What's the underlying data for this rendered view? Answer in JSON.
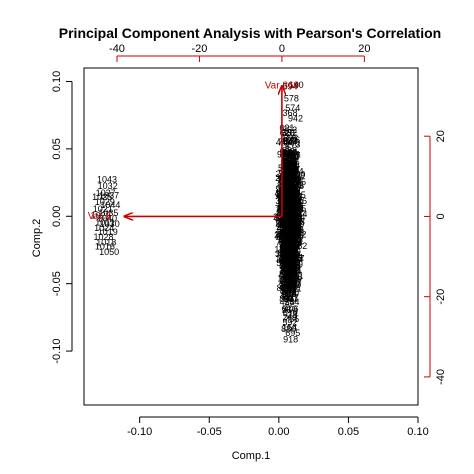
{
  "chart_data": {
    "type": "scatter",
    "title": "Principal Component Analysis with Pearson's Correlation",
    "xlabel": "Comp.1",
    "ylabel": "Comp.2",
    "xlim": [
      -0.14,
      0.1
    ],
    "ylim": [
      -0.14,
      0.11
    ],
    "x_ticks": [
      "-0.10",
      "-0.05",
      "0.00",
      "0.05",
      "0.10"
    ],
    "y_ticks": [
      "-0.10",
      "-0.05",
      "0.00",
      "0.05",
      "0.10"
    ],
    "sec_xlim": [
      -48,
      33
    ],
    "sec_ylim": [
      -47,
      37
    ],
    "sec_x_ticks": [
      "-40",
      "-20",
      "0",
      "20"
    ],
    "sec_y_ticks": [
      "-40",
      "-20",
      "0",
      "20"
    ],
    "arrow_color": "#cc0000",
    "observation_labels": [
      {
        "text": "1043",
        "x": -0.1235,
        "y": 0.027
      },
      {
        "text": "1032",
        "x": -0.123,
        "y": 0.022
      },
      {
        "text": "1027",
        "x": -0.1245,
        "y": 0.017
      },
      {
        "text": "1037",
        "x": -0.122,
        "y": 0.015
      },
      {
        "text": "1025",
        "x": -0.127,
        "y": 0.014
      },
      {
        "text": "1029",
        "x": -0.125,
        "y": 0.01
      },
      {
        "text": "1044",
        "x": -0.121,
        "y": 0.008
      },
      {
        "text": "1021",
        "x": -0.1265,
        "y": 0.005
      },
      {
        "text": "1035",
        "x": -0.1225,
        "y": 0.002
      },
      {
        "text": "1022",
        "x": -0.128,
        "y": 0.0
      },
      {
        "text": "1040",
        "x": -0.1235,
        "y": -0.002
      },
      {
        "text": "1011",
        "x": -0.125,
        "y": -0.005
      },
      {
        "text": "1030",
        "x": -0.1215,
        "y": -0.006
      },
      {
        "text": "1024",
        "x": -0.1255,
        "y": -0.009
      },
      {
        "text": "1019",
        "x": -0.123,
        "y": -0.012
      },
      {
        "text": "1028",
        "x": -0.126,
        "y": -0.016
      },
      {
        "text": "1018",
        "x": -0.124,
        "y": -0.02
      },
      {
        "text": "1016",
        "x": -0.125,
        "y": -0.023
      },
      {
        "text": "1050",
        "x": -0.122,
        "y": -0.027
      },
      {
        "text": "594",
        "x": 0.008,
        "y": 0.096
      },
      {
        "text": "140",
        "x": 0.0125,
        "y": 0.097
      },
      {
        "text": "578",
        "x": 0.009,
        "y": 0.087
      },
      {
        "text": "574",
        "x": 0.01,
        "y": 0.08
      },
      {
        "text": "368",
        "x": 0.008,
        "y": 0.076
      },
      {
        "text": "942",
        "x": 0.012,
        "y": 0.072
      },
      {
        "text": "918",
        "x": 0.0085,
        "y": -0.092
      },
      {
        "text": "695",
        "x": 0.01,
        "y": -0.087
      },
      {
        "text": "880",
        "x": 0.007,
        "y": -0.084
      },
      {
        "text": "437",
        "x": 0.009,
        "y": -0.061
      },
      {
        "text": "423",
        "x": 0.006,
        "y": -0.064
      },
      {
        "text": "571",
        "x": 0.011,
        "y": -0.054
      }
    ],
    "observation_cloud": {
      "x_center": 0.008,
      "x_spread": 0.0075,
      "y_min": -0.088,
      "y_max": 0.078,
      "count": 650,
      "label_range": [
        1,
        1000
      ]
    },
    "variable_labels": [
      "Var 369",
      "Var 8"
    ],
    "variable_arrow_tips": [
      {
        "name": "Var 369",
        "x": 0,
        "y": 32.5
      },
      {
        "name": "Var 8",
        "x": -38.2,
        "y": 0
      }
    ],
    "variable_label_positions": [
      {
        "name": "Var 369",
        "x": 0.001,
        "y": 32.5
      },
      {
        "name": "Var 8",
        "x": -44.3,
        "y": 0
      }
    ],
    "series": [
      {
        "values": []
      }
    ]
  }
}
